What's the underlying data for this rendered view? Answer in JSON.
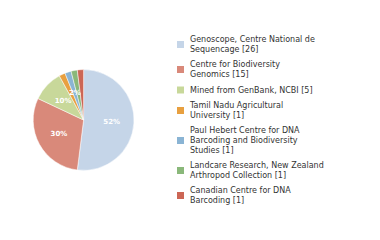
{
  "chart_data": {
    "type": "pie",
    "categories": [
      "Genoscope, Centre National de\nSequencage [26]",
      "Centre for Biodiversity\nGenomics [15]",
      "Mined from GenBank, NCBI [5]",
      "Tamil Nadu Agricultural\nUniversity [1]",
      "Paul Hebert Centre for DNA\nBarcoding and Biodiversity\nStudies [1]",
      "Landcare Research, New Zealand\nArthropod Collection [1]",
      "Canadian Centre for DNA\nBarcoding [1]"
    ],
    "values": [
      52,
      30,
      10,
      2,
      2,
      2,
      2
    ],
    "value_labels": [
      "52%",
      "30%",
      "10%",
      "2%",
      "2%",
      "2%",
      "2%"
    ],
    "colors": [
      "#c5d5e8",
      "#d9897a",
      "#c8d89a",
      "#e8a040",
      "#8ab4d4",
      "#8ab87a",
      "#cc6655"
    ],
    "data_labels": true,
    "legend": "right"
  }
}
